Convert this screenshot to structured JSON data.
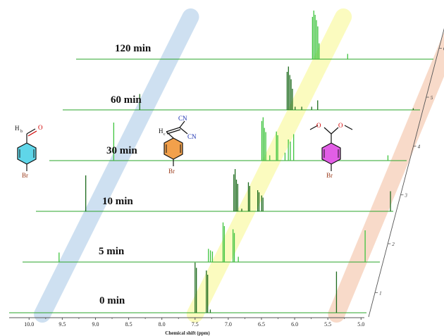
{
  "chart_data": {
    "type": "line",
    "xlabel": "Chemical shift (ppm)",
    "x_ticks": [
      "10.0",
      "9.5",
      "9.0",
      "8.5",
      "8.0",
      "7.5",
      "7.0",
      "6.5",
      "6.0",
      "5.5",
      "5.0"
    ],
    "xlim": [
      10.3,
      4.95
    ],
    "x_reversed": true,
    "grid": false,
    "series": [
      {
        "name": "0 min",
        "axis_index": "1",
        "peaks": [
          {
            "x": 7.5,
            "y": 0.95
          },
          {
            "x": 7.48,
            "y": 0.85
          },
          {
            "x": 7.33,
            "y": 0.8
          },
          {
            "x": 7.31,
            "y": 0.72
          },
          {
            "x": 7.27,
            "y": 0.06
          },
          {
            "x": 5.37,
            "y": 0.78
          }
        ]
      },
      {
        "name": "5 min",
        "axis_index": "2",
        "peaks": [
          {
            "x": 9.75,
            "y": 0.18
          },
          {
            "x": 7.5,
            "y": 0.25
          },
          {
            "x": 7.47,
            "y": 0.22
          },
          {
            "x": 7.44,
            "y": 0.2
          },
          {
            "x": 7.28,
            "y": 0.75
          },
          {
            "x": 7.26,
            "y": 0.68
          },
          {
            "x": 7.13,
            "y": 0.62
          },
          {
            "x": 7.11,
            "y": 0.55
          },
          {
            "x": 7.05,
            "y": 0.1
          },
          {
            "x": 5.14,
            "y": 0.6
          }
        ]
      },
      {
        "name": "10 min",
        "axis_index": "3",
        "peaks": [
          {
            "x": 9.55,
            "y": 0.68
          },
          {
            "x": 7.32,
            "y": 0.7
          },
          {
            "x": 7.3,
            "y": 0.8
          },
          {
            "x": 7.28,
            "y": 0.6
          },
          {
            "x": 7.26,
            "y": 0.52
          },
          {
            "x": 7.2,
            "y": 0.05
          },
          {
            "x": 7.1,
            "y": 0.55
          },
          {
            "x": 7.08,
            "y": 0.48
          },
          {
            "x": 6.96,
            "y": 0.4
          },
          {
            "x": 6.94,
            "y": 0.36
          },
          {
            "x": 6.9,
            "y": 0.3
          },
          {
            "x": 6.88,
            "y": 0.26
          },
          {
            "x": 4.96,
            "y": 0.38
          }
        ]
      },
      {
        "name": "30 min",
        "axis_index": "4",
        "peaks": [
          {
            "x": 9.33,
            "y": 0.72
          },
          {
            "x": 7.1,
            "y": 0.75
          },
          {
            "x": 7.08,
            "y": 0.82
          },
          {
            "x": 7.06,
            "y": 0.62
          },
          {
            "x": 7.04,
            "y": 0.54
          },
          {
            "x": 6.98,
            "y": 0.1
          },
          {
            "x": 6.88,
            "y": 0.55
          },
          {
            "x": 6.86,
            "y": 0.48
          },
          {
            "x": 6.75,
            "y": 0.15
          },
          {
            "x": 6.7,
            "y": 0.4
          },
          {
            "x": 6.67,
            "y": 0.36
          },
          {
            "x": 6.62,
            "y": 0.5
          },
          {
            "x": 5.2,
            "y": 0.1
          }
        ]
      },
      {
        "name": "60 min",
        "axis_index": "5",
        "peaks": [
          {
            "x": 9.14,
            "y": 0.3
          },
          {
            "x": 6.92,
            "y": 0.72
          },
          {
            "x": 6.9,
            "y": 0.82
          },
          {
            "x": 6.88,
            "y": 0.66
          },
          {
            "x": 6.86,
            "y": 0.58
          },
          {
            "x": 6.84,
            "y": 0.4
          },
          {
            "x": 6.8,
            "y": 0.06
          },
          {
            "x": 6.7,
            "y": 0.06
          },
          {
            "x": 6.55,
            "y": 0.06
          },
          {
            "x": 6.46,
            "y": 0.18
          },
          {
            "x": 5.02,
            "y": 0.03
          }
        ]
      },
      {
        "name": "120 min",
        "axis_index": "6",
        "peaks": [
          {
            "x": 6.74,
            "y": 0.8
          },
          {
            "x": 6.72,
            "y": 0.92
          },
          {
            "x": 6.7,
            "y": 0.84
          },
          {
            "x": 6.68,
            "y": 0.74
          },
          {
            "x": 6.66,
            "y": 0.62
          },
          {
            "x": 6.64,
            "y": 0.3
          },
          {
            "x": 6.21,
            "y": 0.1
          }
        ]
      }
    ],
    "highlight_bands": [
      {
        "color": "#c6dbef",
        "x_range": [
          9.8,
          9.0
        ]
      },
      {
        "color": "#fafab4",
        "x_range": [
          7.5,
          6.7
        ]
      },
      {
        "color": "#f7d3bf",
        "x_range": [
          5.37,
          4.95
        ]
      }
    ],
    "structures": [
      {
        "name": "4-bromobenzaldehyde",
        "labels": [
          "H",
          "b",
          "O",
          "Br"
        ],
        "ring_color": "#5fd6e9"
      },
      {
        "name": "benzylidene malononitrile",
        "labels": [
          "H",
          "c",
          "CN",
          "CN",
          "Br"
        ],
        "ring_color": "#f2a04b"
      },
      {
        "name": "dimethyl acetal",
        "labels": [
          "O",
          "O",
          "Br"
        ],
        "ring_color": "#e25ee6"
      }
    ]
  },
  "colors": {
    "spectrum_dark": "#1e6b1e",
    "spectrum_light": "#3fc43f",
    "baseline": "#2aa52a",
    "axis": "#555555",
    "oxygen": "#d00000",
    "bromine": "#9a3a1a",
    "nitrile_n": "#1a2fb0"
  }
}
